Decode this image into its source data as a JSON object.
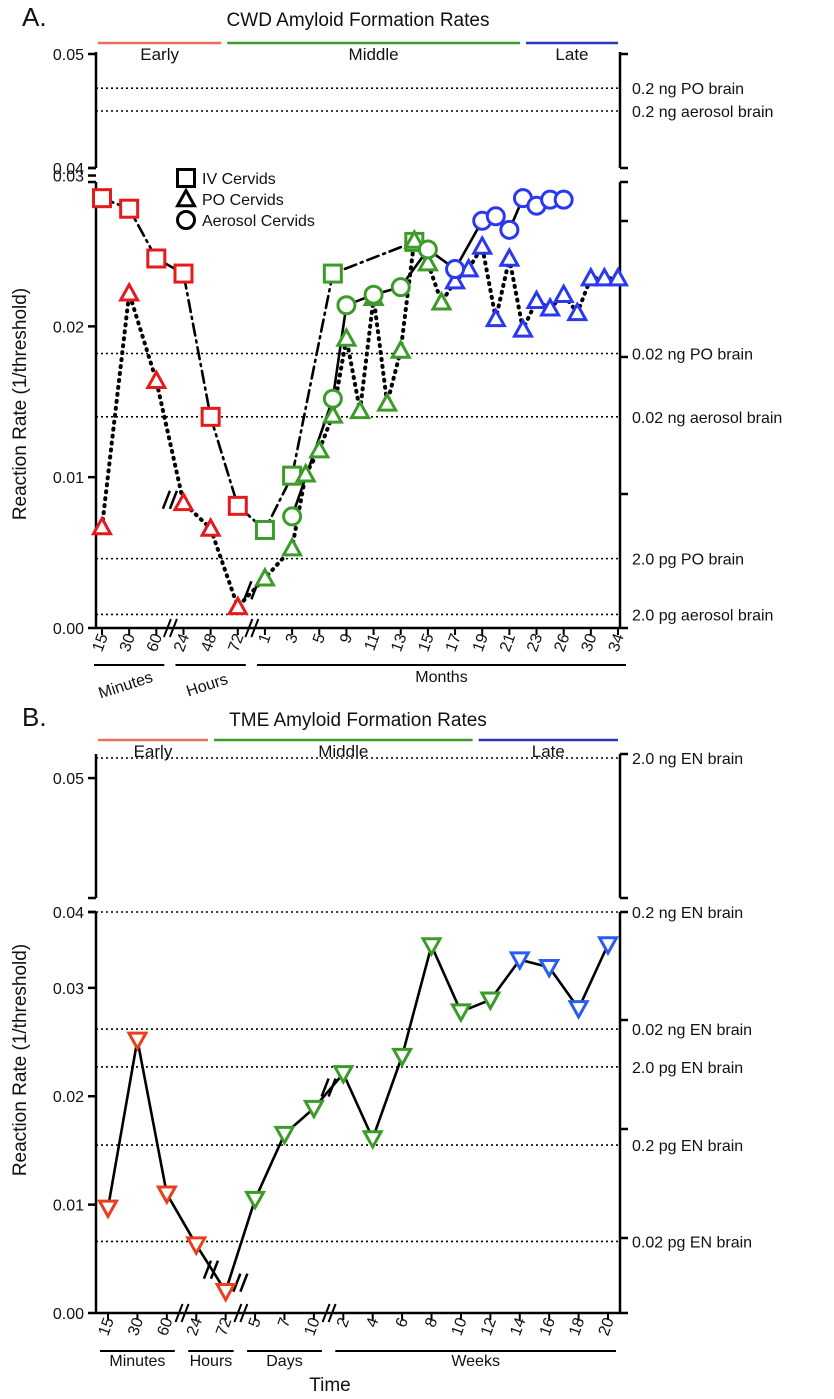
{
  "chart_data": [
    {
      "type": "line",
      "panel_label": "A.",
      "title": "CWD Amyloid Formation Rates",
      "ylabel": "Reaction Rate (1/threshold)",
      "xlabel": "",
      "ylim": [
        0,
        0.05
      ],
      "axis_break": [
        0.0305,
        0.04
      ],
      "y_ticks_lower": [
        "0.00",
        "0.01",
        "0.02",
        "0.03"
      ],
      "y_ticks_upper": [
        "0.04",
        "0.05"
      ],
      "grid": false,
      "legend": "top-left",
      "phases": [
        {
          "name": "Early",
          "color": "#e8705e",
          "from": 0,
          "to": 5
        },
        {
          "name": "Middle",
          "color": "#3d9b2a",
          "from": 5,
          "to": 16
        },
        {
          "name": "Late",
          "color": "#2a38b8",
          "from": 16,
          "to": 24
        }
      ],
      "x_ticks": [
        "15",
        "30",
        "60",
        "24",
        "48",
        "72",
        "1",
        "3",
        "5",
        "9",
        "11",
        "13",
        "15",
        "17",
        "19",
        "21",
        "23",
        "26",
        "30",
        "34"
      ],
      "x_ticks_shown": [
        true,
        true,
        true,
        true,
        true,
        true,
        true,
        true,
        true,
        true,
        true,
        true,
        true,
        true,
        true,
        true,
        true,
        true,
        true,
        true
      ],
      "x_groups": [
        {
          "label": "Minutes",
          "ticks": [
            0,
            2
          ]
        },
        {
          "label": "Hours",
          "ticks": [
            3,
            5
          ]
        },
        {
          "label": "Months",
          "ticks": [
            6,
            19
          ]
        }
      ],
      "reference_lines": [
        {
          "label": "0.2 ng PO brain",
          "y": 0.047
        },
        {
          "label": "0.2 ng aerosol brain",
          "y": 0.045
        },
        {
          "label": "0.02 ng PO brain",
          "y": 0.0182
        },
        {
          "label": "0.02 ng aerosol brain",
          "y": 0.014
        },
        {
          "label": "2.0 pg PO brain",
          "y": 0.0046
        },
        {
          "label": "2.0 pg aerosol brain",
          "y": 0.0009
        }
      ],
      "series": [
        {
          "name": "IV Cervids",
          "marker": "square",
          "line": "dashdot",
          "x": [
            0,
            1,
            2,
            3,
            4,
            5,
            6,
            7,
            8.5,
            11.5
          ],
          "y": [
            0.0285,
            0.0278,
            0.0245,
            0.0235,
            0.014,
            0.0081,
            0.0065,
            0.0101,
            0.0235,
            0.0256
          ],
          "colors": [
            "#e41a1c",
            "#e41a1c",
            "#e41a1c",
            "#e41a1c",
            "#e41a1c",
            "#e41a1c",
            "#3d9b2a",
            "#3d9b2a",
            "#3d9b2a",
            "#3d9b2a"
          ]
        },
        {
          "name": "PO Cervids",
          "marker": "triangle-up",
          "line": "dotted",
          "x": [
            0,
            1,
            2,
            3,
            4,
            5,
            6,
            7,
            7.5,
            8,
            8.5,
            9,
            9.5,
            10,
            10.5,
            11,
            11.5,
            12,
            12.5,
            13,
            13.5,
            14,
            14.5,
            15,
            15.5,
            16,
            16.5,
            17,
            17.5,
            18,
            18.5,
            19
          ],
          "y": [
            0.0067,
            0.0222,
            0.0164,
            0.0083,
            0.0066,
            0.0014,
            0.0033,
            0.0053,
            0.0102,
            0.0118,
            0.0141,
            0.0192,
            0.0144,
            0.0219,
            0.0149,
            0.0184,
            0.0257,
            0.0242,
            0.0216,
            0.023,
            0.0238,
            0.0253,
            0.0205,
            0.0245,
            0.0198,
            0.0217,
            0.0212,
            0.0221,
            0.0209,
            0.0232,
            0.0232,
            0.0232
          ],
          "colors": [
            "#e41a1c",
            "#e41a1c",
            "#e41a1c",
            "#e41a1c",
            "#e41a1c",
            "#e41a1c",
            "#3d9b2a",
            "#3d9b2a",
            "#3d9b2a",
            "#3d9b2a",
            "#3d9b2a",
            "#3d9b2a",
            "#3d9b2a",
            "#3d9b2a",
            "#3d9b2a",
            "#3d9b2a",
            "#3d9b2a",
            "#3d9b2a",
            "#3d9b2a",
            "#2a38f0",
            "#2a38f0",
            "#2a38f0",
            "#2a38f0",
            "#2a38f0",
            "#2a38f0",
            "#2a38f0",
            "#2a38f0",
            "#2a38f0",
            "#2a38f0",
            "#2a38f0",
            "#2a38f0",
            "#2a38f0"
          ]
        },
        {
          "name": "Aerosol Cervids",
          "marker": "circle",
          "line": "solid",
          "x": [
            7,
            8.5,
            9,
            10,
            11,
            12,
            13,
            14,
            14.5,
            15,
            15.5,
            16,
            16.5,
            17
          ],
          "y": [
            0.0074,
            0.0152,
            0.0214,
            0.0221,
            0.0226,
            0.0251,
            0.0238,
            0.027,
            0.0273,
            0.0264,
            0.0285,
            0.028,
            0.0284,
            0.0284
          ],
          "colors": [
            "#3d9b2a",
            "#3d9b2a",
            "#3d9b2a",
            "#3d9b2a",
            "#3d9b2a",
            "#3d9b2a",
            "#2a38f0",
            "#2a38f0",
            "#2a38f0",
            "#2a38f0",
            "#2a38f0",
            "#2a38f0",
            "#2a38f0",
            "#2a38f0"
          ]
        }
      ]
    },
    {
      "type": "line",
      "panel_label": "B.",
      "title": "TME Amyloid Formation Rates",
      "ylabel": "Reaction Rate (1/threshold)",
      "xlabel": "Time",
      "ylim": [
        0,
        0.05
      ],
      "axis_break": [
        0.037,
        0.04
      ],
      "y_ticks_lower": [
        "0.00",
        "0.01",
        "0.02",
        "0.03"
      ],
      "y_ticks_upper": [
        "0.04",
        "0.05"
      ],
      "grid": false,
      "legend": "none",
      "phases": [
        {
          "name": "Early",
          "color": "#e8705e",
          "from": 0,
          "to": 4
        },
        {
          "name": "Middle",
          "color": "#3d9b2a",
          "from": 4,
          "to": 13
        },
        {
          "name": "Late",
          "color": "#2a38b8",
          "from": 13,
          "to": 17
        }
      ],
      "x_ticks": [
        "15",
        "30",
        "60",
        "24",
        "72",
        "5",
        "7",
        "10",
        "2",
        "4",
        "6",
        "8",
        "10",
        "12",
        "14",
        "16",
        "18",
        "20"
      ],
      "x_groups": [
        {
          "label": "Minutes",
          "ticks": [
            0,
            2
          ]
        },
        {
          "label": "Hours",
          "ticks": [
            3,
            4
          ]
        },
        {
          "label": "Days",
          "ticks": [
            5,
            7
          ]
        },
        {
          "label": "Weeks",
          "ticks": [
            8,
            17
          ]
        }
      ],
      "reference_lines": [
        {
          "label": "2.0 ng EN brain",
          "y": 0.0515
        },
        {
          "label": "0.2 ng EN brain",
          "y": 0.037
        },
        {
          "label": "0.02 ng EN brain",
          "y": 0.0262
        },
        {
          "label": "2.0 pg EN brain",
          "y": 0.0227
        },
        {
          "label": "0.2 pg EN brain",
          "y": 0.0155
        },
        {
          "label": "0.02 pg EN brain",
          "y": 0.0066
        }
      ],
      "series": [
        {
          "name": "",
          "marker": "triangle-down",
          "line": "solid",
          "x": [
            0,
            1,
            2,
            3,
            4,
            5,
            6,
            7,
            8,
            9,
            10,
            11,
            12,
            13,
            14,
            15,
            16,
            17
          ],
          "y": [
            0.0097,
            0.0252,
            0.011,
            0.0063,
            0.002,
            0.0105,
            0.0165,
            0.0189,
            0.0221,
            0.0161,
            0.0237,
            0.0339,
            0.0278,
            0.0289,
            0.0326,
            0.0319,
            0.0281,
            0.034
          ],
          "colors": [
            "#e8401c",
            "#e8401c",
            "#e8401c",
            "#e8401c",
            "#e8401c",
            "#3d9b2a",
            "#3d9b2a",
            "#3d9b2a",
            "#3d9b2a",
            "#3d9b2a",
            "#3d9b2a",
            "#3d9b2a",
            "#3d9b2a",
            "#3d9b2a",
            "#2a5cf0",
            "#2a5cf0",
            "#2a5cf0",
            "#2a5cf0"
          ]
        }
      ]
    }
  ]
}
